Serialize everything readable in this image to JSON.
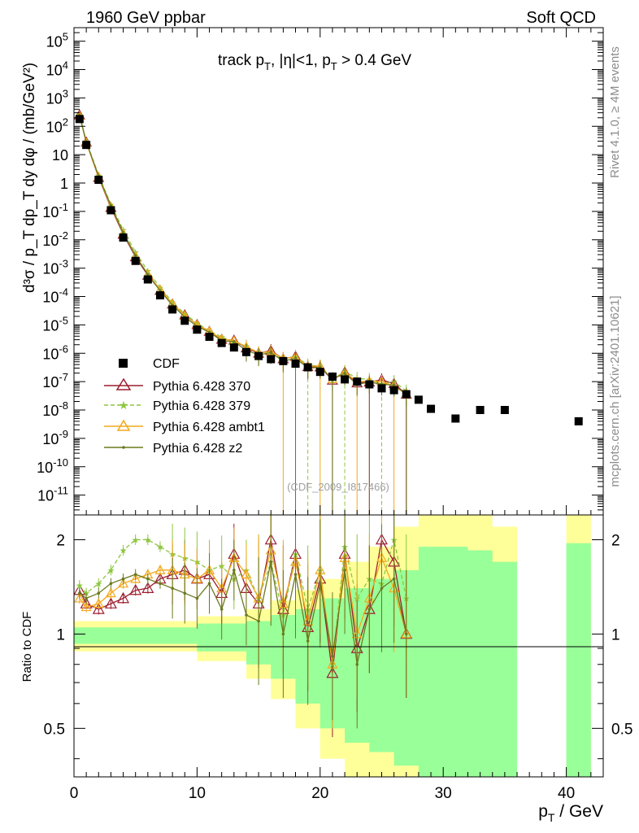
{
  "header": {
    "left": "1960 GeV ppbar",
    "right": "Soft QCD"
  },
  "side_labels": {
    "rivet": "Rivet 4.1.0, ≥ 4M events",
    "site": "mcplots.cern.ch [arXiv:2401.10621]"
  },
  "chart_data": [
    {
      "type": "scatter",
      "panel": "main",
      "title": "track p_T, |η|<1, p_T > 0.4 GeV",
      "title_parts": {
        "a": "track p",
        "b": "T",
        "c": ", |η|<1, p",
        "d": "T",
        "e": " > 0.4 GeV"
      },
      "ylabel": "d³σ / p_T dp_T dy dφ / (mb/GeV²)",
      "yscale": "log",
      "ylim": [
        2e-12,
        300000.0
      ],
      "xlim": [
        0,
        43
      ],
      "y_ticks": [
        "10^{-11}",
        "10^{-10}",
        "10^{-9}",
        "10^{-8}",
        "10^{-7}",
        "10^{-6}",
        "10^{-5}",
        "10^{-4}",
        "10^{-3}",
        "10^{-2}",
        "10^{-1}",
        "1",
        "10",
        "10^{2}",
        "10^{3}",
        "10^{4}",
        "10^{5}"
      ],
      "watermark": "(CDF_2009_I817466)",
      "legend": [
        "CDF",
        "Pythia 6.428 370",
        "Pythia 6.428 379",
        "Pythia 6.428 ambt1",
        "Pythia 6.428 z2"
      ],
      "series": [
        {
          "name": "CDF",
          "x": [
            0.45,
            1,
            2,
            3,
            4,
            5,
            6,
            7,
            8,
            9,
            10,
            11,
            12,
            13,
            14,
            15,
            16,
            17,
            18,
            19,
            20,
            21,
            22,
            23,
            24,
            25,
            26,
            27,
            28,
            29,
            31,
            33,
            35,
            41
          ],
          "y": [
            180,
            22,
            1.3,
            0.11,
            0.012,
            0.0018,
            0.0004,
            0.00011,
            3.5e-05,
            1.4e-05,
            6.8e-06,
            3.8e-06,
            2.3e-06,
            1.6e-06,
            1.1e-06,
            8e-07,
            6.2e-07,
            5.3e-07,
            4.3e-07,
            3.2e-07,
            2.2e-07,
            1.5e-07,
            1.2e-07,
            1e-07,
            8e-08,
            5.8e-08,
            5e-08,
            3.6e-08,
            2.3e-08,
            1.1e-08,
            5e-09,
            1e-08,
            1e-08,
            4e-09
          ]
        },
        {
          "name": "Pythia 6.428 370",
          "ratio": [
            1.38,
            1.25,
            1.2,
            1.25,
            1.3,
            1.38,
            1.4,
            1.5,
            1.55,
            1.6,
            1.5,
            1.55,
            1.35,
            1.8,
            1.4,
            1.25,
            2.0,
            1.2,
            1.8,
            1.05,
            1.5,
            0.75,
            1.8,
            0.9,
            1.2,
            2.0,
            1.7,
            1.0
          ]
        },
        {
          "name": "Pythia 6.428 379",
          "ratio": [
            1.43,
            1.35,
            1.45,
            1.6,
            1.85,
            2.0,
            2.0,
            1.9,
            1.8,
            1.75,
            1.7,
            1.6,
            1.65,
            1.5,
            1.6,
            1.3,
            1.7,
            1.15,
            1.8,
            1.2,
            1.6,
            0.8,
            1.9,
            1.3,
            1.5,
            1.45,
            2.0,
            1.3
          ]
        },
        {
          "name": "Pythia 6.428 ambt1",
          "ratio": [
            1.3,
            1.22,
            1.25,
            1.35,
            1.45,
            1.5,
            1.55,
            1.6,
            1.6,
            1.55,
            1.5,
            1.6,
            1.4,
            1.75,
            1.55,
            1.3,
            1.85,
            1.25,
            1.7,
            1.1,
            1.6,
            0.8,
            1.75,
            1.0,
            1.3,
            1.75,
            1.4,
            1.0
          ]
        },
        {
          "name": "Pythia 6.428 z2",
          "ratio": [
            1.35,
            1.3,
            1.35,
            1.45,
            1.5,
            1.55,
            1.5,
            1.45,
            1.4,
            1.35,
            1.3,
            1.45,
            1.2,
            1.6,
            1.15,
            1.1,
            1.7,
            1.0,
            1.55,
            0.95,
            1.45,
            0.85,
            1.6,
            0.8,
            1.2,
            1.4,
            1.5,
            1.0
          ]
        }
      ]
    },
    {
      "type": "line",
      "panel": "ratio",
      "ylabel": "Ratio to CDF",
      "yscale": "log",
      "ylim": [
        0.35,
        2.4
      ],
      "xlim": [
        0,
        43
      ],
      "xlabel": "p_T / GeV",
      "xlabel_parts": {
        "a": "p",
        "b": "T",
        "c": " / GeV"
      },
      "x_ticks": [
        "0",
        "10",
        "20",
        "30",
        "40"
      ],
      "y_ticks": [
        "0.5",
        "1",
        "2"
      ],
      "bands": {
        "x": [
          0,
          5,
          10,
          14,
          16,
          18,
          20,
          22,
          24,
          26,
          28,
          30,
          32,
          34,
          36
        ],
        "green_lo": [
          0.93,
          0.93,
          0.88,
          0.8,
          0.72,
          0.6,
          0.5,
          0.45,
          0.42,
          0.38,
          0.3,
          0.3,
          0.3,
          0.3,
          0.3
        ],
        "green_hi": [
          1.05,
          1.05,
          1.08,
          1.1,
          1.15,
          1.2,
          1.3,
          1.4,
          1.5,
          1.6,
          1.9,
          1.9,
          1.85,
          1.7,
          1.65
        ],
        "yellow_lo": [
          0.88,
          0.88,
          0.82,
          0.72,
          0.62,
          0.5,
          0.4,
          0.35,
          0.3,
          0.3,
          0.3,
          0.3,
          0.3,
          0.3,
          0.3
        ],
        "yellow_hi": [
          1.1,
          1.1,
          1.14,
          1.2,
          1.28,
          1.38,
          1.5,
          1.7,
          1.9,
          2.2,
          2.4,
          2.4,
          2.4,
          2.2,
          2.2
        ],
        "far": {
          "x": [
            40,
            42
          ],
          "green_lo": 0.3,
          "green_hi": 1.95,
          "yellow_lo": 0.3,
          "yellow_hi": 2.4
        }
      }
    }
  ],
  "colors": {
    "cdf": "#000000",
    "p370": "#9c1d2e",
    "p379": "#8dc63f",
    "ambt1": "#f2a91c",
    "z2": "#6b7a1f",
    "band_green": "#99ff99",
    "band_yellow": "#ffff99"
  }
}
